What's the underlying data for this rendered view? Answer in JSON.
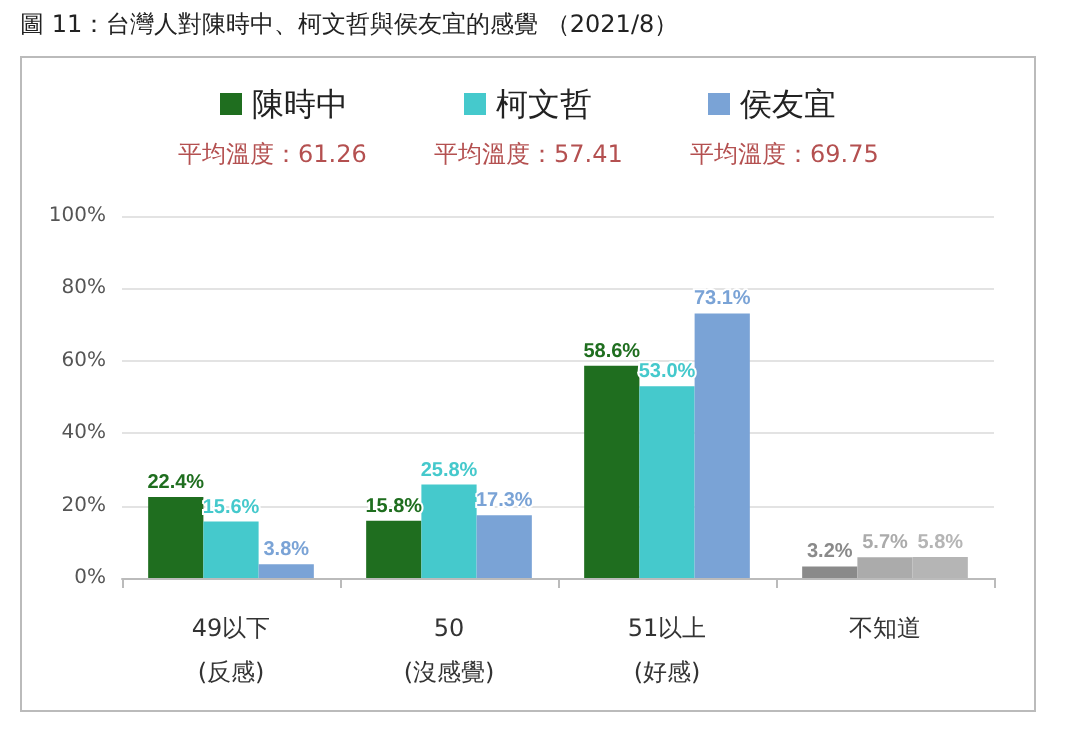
{
  "chart_data": {
    "type": "bar",
    "title": "圖 11：台灣人對陳時中、柯文哲與侯友宜的感覺 （2021/8）",
    "categories": [
      "49以下\n(反感)",
      "50\n(沒感覺)",
      "51以上\n(好感)",
      "不知道"
    ],
    "series": [
      {
        "name": "陳時中",
        "color": "#1f6e1f",
        "colors": [
          "#1f6e1f",
          "#1f6e1f",
          "#1f6e1f",
          "#8a8a8a"
        ],
        "values": [
          22.4,
          15.8,
          58.6,
          3.2
        ],
        "value_labels": [
          "22.4%",
          "15.8%",
          "58.6%",
          "3.2%"
        ]
      },
      {
        "name": "柯文哲",
        "color": "#45c9cc",
        "colors": [
          "#45c9cc",
          "#45c9cc",
          "#45c9cc",
          "#ababab"
        ],
        "values": [
          15.6,
          25.8,
          53.0,
          5.7
        ],
        "value_labels": [
          "15.6%",
          "25.8%",
          "53.0%",
          "5.7%"
        ]
      },
      {
        "name": "侯友宜",
        "color": "#7aa3d6",
        "colors": [
          "#7aa3d6",
          "#7aa3d6",
          "#7aa3d6",
          "#b5b5b5"
        ],
        "values": [
          3.8,
          17.3,
          73.1,
          5.8
        ],
        "value_labels": [
          "3.8%",
          "17.3%",
          "73.1%",
          "5.8%"
        ]
      }
    ],
    "ylim": [
      0,
      100
    ],
    "yticks": [
      {
        "value": 0,
        "label": "0%"
      },
      {
        "value": 20,
        "label": "20%"
      },
      {
        "value": 40,
        "label": "40%"
      },
      {
        "value": 60,
        "label": "60%"
      },
      {
        "value": 80,
        "label": "80%"
      },
      {
        "value": 100,
        "label": "100%"
      }
    ],
    "grid": "y",
    "legend": "top",
    "annotations": [
      "平均溫度：61.26",
      "平均溫度：57.41",
      "平均溫度：69.75"
    ]
  }
}
